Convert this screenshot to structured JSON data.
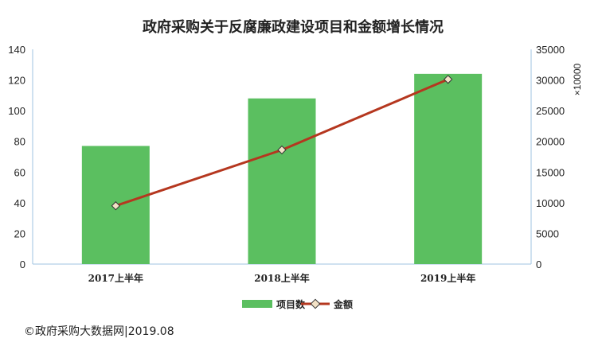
{
  "chart_data": {
    "type": "bar+line",
    "title": "政府采购关于反腐廉政建设项目和金额增长情况",
    "categories": [
      "2017上半年",
      "2018上半年",
      "2019上半年"
    ],
    "series": [
      {
        "name": "项目数",
        "type": "bar",
        "axis": "left",
        "values": [
          77,
          108,
          124
        ],
        "color": "#5bbf60"
      },
      {
        "name": "金额",
        "type": "line",
        "axis": "right",
        "values": [
          9500,
          18600,
          30100
        ],
        "color": "#b5371f"
      }
    ],
    "y_left": {
      "min": 0,
      "max": 140,
      "ticks": [
        "0",
        "20",
        "40",
        "60",
        "80",
        "100",
        "120",
        "140"
      ]
    },
    "y_right": {
      "min": 0,
      "max": 35000,
      "ticks": [
        "0",
        "5000",
        "10000",
        "15000",
        "20000",
        "25000",
        "30000",
        "35000"
      ],
      "unit": "×10000"
    },
    "grid": false,
    "legend_position": "bottom"
  },
  "footer": "©政府采购大数据网|2019.08"
}
